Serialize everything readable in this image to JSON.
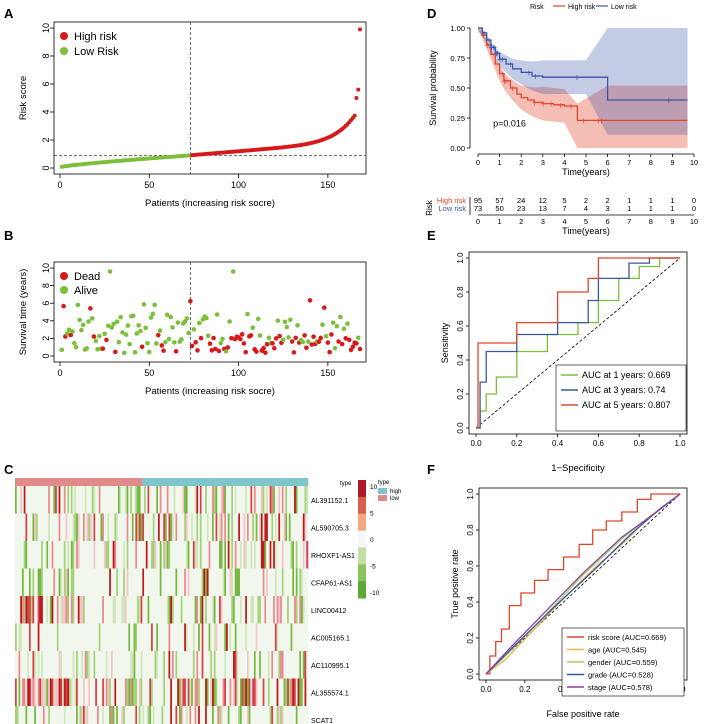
{
  "figure": {
    "panel_letters": [
      "A",
      "B",
      "C",
      "D",
      "E",
      "F"
    ]
  },
  "chart_data": [
    {
      "id": "A",
      "type": "scatter",
      "title": "",
      "xlabel": "Patients (increasing risk socre)",
      "ylabel": "Risk score",
      "xlim": [
        0,
        168
      ],
      "ylim": [
        0,
        10
      ],
      "xticks": [
        0,
        50,
        100,
        150
      ],
      "yticks": [
        0,
        2,
        4,
        6,
        8,
        10
      ],
      "n_low": 73,
      "n_high": 95,
      "cutoff_index": 73,
      "cutoff_value": 0.9,
      "legend": [
        {
          "label": "High risk",
          "color": "#d7191c"
        },
        {
          "label": "Low Risk",
          "color": "#7cbf3a"
        }
      ]
    },
    {
      "id": "B",
      "type": "scatter",
      "xlabel": "Patients (increasing risk socre)",
      "ylabel": "Survival time (years)",
      "xlim": [
        0,
        168
      ],
      "ylim": [
        0,
        10
      ],
      "xticks": [
        0,
        50,
        100,
        150
      ],
      "yticks": [
        0,
        2,
        4,
        6,
        8,
        10
      ],
      "cutoff_index": 73,
      "legend": [
        {
          "label": "Dead",
          "color": "#d7191c"
        },
        {
          "label": "Alive",
          "color": "#7cbf3a"
        }
      ]
    },
    {
      "id": "C",
      "type": "heatmap",
      "genes": [
        "AL391152.1",
        "AL590705.3",
        "RHOXF1-AS1",
        "CFAP61-AS1",
        "LINC00412",
        "AC005165.1",
        "AC110995.1",
        "AL355574.1",
        "SCAT1"
      ],
      "columns": 168,
      "low_count": 73,
      "colorbar_ticks": [
        10,
        5,
        0,
        -5,
        -10
      ],
      "legend_title": "type",
      "legend": [
        {
          "label": "high",
          "color": "#7ec6cc"
        },
        {
          "label": "low",
          "color": "#e08a8a"
        }
      ]
    },
    {
      "id": "D",
      "type": "line",
      "xlabel": "Time(years)",
      "ylabel": "Survival probability",
      "xlim": [
        0,
        10
      ],
      "ylim": [
        0,
        1
      ],
      "xticks": [
        0,
        1,
        2,
        3,
        4,
        5,
        6,
        7,
        8,
        9,
        10
      ],
      "yticks": [
        "0.00",
        "0.25",
        "0.50",
        "0.75",
        "1.00"
      ],
      "pvalue": "p=0.016",
      "legend_title": "Risk",
      "series": [
        {
          "name": "High risk",
          "color": "#e2452a",
          "x": [
            0,
            0.2,
            0.4,
            0.6,
            0.8,
            1.0,
            1.2,
            1.5,
            1.8,
            2.0,
            2.3,
            2.6,
            3.0,
            3.5,
            4.0,
            4.6,
            6.0,
            9.7
          ],
          "y": [
            1.0,
            0.94,
            0.86,
            0.78,
            0.7,
            0.62,
            0.56,
            0.5,
            0.45,
            0.42,
            0.4,
            0.38,
            0.37,
            0.36,
            0.35,
            0.23,
            0.23,
            0.23
          ]
        },
        {
          "name": "Low risk",
          "color": "#3d55a8",
          "x": [
            0,
            0.2,
            0.4,
            0.6,
            0.8,
            1.0,
            1.3,
            1.6,
            2.0,
            2.5,
            3.0,
            5.0,
            6.0,
            9.7
          ],
          "y": [
            1.0,
            0.96,
            0.9,
            0.84,
            0.79,
            0.74,
            0.7,
            0.66,
            0.63,
            0.6,
            0.59,
            0.59,
            0.4,
            0.4
          ]
        }
      ],
      "risk_table": {
        "title": "Risk",
        "rows": [
          {
            "name": "High risk",
            "color": "#e2452a",
            "counts": [
              "95",
              "57",
              "24",
              "12",
              "5",
              "2",
              "2",
              "1",
              "1",
              "1",
              "0"
            ]
          },
          {
            "name": "Low risk",
            "color": "#3d55a8",
            "counts": [
              "73",
              "50",
              "23",
              "13",
              "7",
              "4",
              "3",
              "1",
              "1",
              "1",
              "0"
            ]
          }
        ],
        "xlabel": "Time(years)",
        "xticks": [
          0,
          1,
          2,
          3,
          4,
          5,
          6,
          7,
          8,
          9,
          10
        ]
      }
    },
    {
      "id": "E",
      "type": "line",
      "xlabel": "1−Specificity",
      "ylabel": "Sensitivity",
      "xlim": [
        0,
        1
      ],
      "ylim": [
        0,
        1
      ],
      "xticks": [
        "0.0",
        "0.2",
        "0.4",
        "0.6",
        "0.8",
        "1.0"
      ],
      "yticks": [
        "0.0",
        "0.2",
        "0.4",
        "0.6",
        "0.8",
        "1.0"
      ],
      "series": [
        {
          "name": "AUC at 1 years: 0.669",
          "color": "#7cbf3a",
          "x": [
            0,
            0.02,
            0.02,
            0.05,
            0.05,
            0.1,
            0.1,
            0.2,
            0.2,
            0.35,
            0.35,
            0.5,
            0.5,
            0.6,
            0.6,
            0.7,
            0.7,
            0.8,
            0.8,
            0.9,
            0.9,
            1.0
          ],
          "y": [
            0,
            0,
            0.1,
            0.1,
            0.2,
            0.2,
            0.3,
            0.3,
            0.45,
            0.45,
            0.55,
            0.55,
            0.62,
            0.62,
            0.75,
            0.75,
            0.88,
            0.88,
            0.95,
            0.95,
            1.0,
            1.0
          ]
        },
        {
          "name": "AUC at 3 years: 0.74",
          "color": "#3d55a8",
          "x": [
            0,
            0.02,
            0.02,
            0.05,
            0.05,
            0.2,
            0.2,
            0.4,
            0.4,
            0.55,
            0.55,
            0.6,
            0.6,
            0.75,
            0.75,
            0.85,
            0.85,
            1.0
          ],
          "y": [
            0,
            0,
            0.27,
            0.27,
            0.45,
            0.45,
            0.55,
            0.55,
            0.62,
            0.62,
            0.75,
            0.75,
            0.88,
            0.88,
            0.97,
            0.97,
            1.0,
            1.0
          ]
        },
        {
          "name": "AUC at 5 years: 0.807",
          "color": "#e2452a",
          "x": [
            0,
            0.01,
            0.01,
            0.2,
            0.2,
            0.4,
            0.4,
            0.55,
            0.55,
            0.6,
            0.6,
            1.0
          ],
          "y": [
            0,
            0,
            0.5,
            0.5,
            0.62,
            0.62,
            0.8,
            0.8,
            0.88,
            0.88,
            1.0,
            1.0
          ]
        }
      ]
    },
    {
      "id": "F",
      "type": "line",
      "xlabel": "False positive rate",
      "ylabel": "True positive rate",
      "xlim": [
        0,
        1
      ],
      "ylim": [
        0,
        1
      ],
      "xticks": [
        "0.0",
        "0.2",
        "0.4",
        "0.6",
        "0.8",
        "1.0"
      ],
      "yticks": [
        "0.0",
        "0.2",
        "0.4",
        "0.6",
        "0.8",
        "1.0"
      ],
      "series": [
        {
          "name": "risk score (AUC=0.669)",
          "color": "#e2452a",
          "x": [
            0,
            0.02,
            0.02,
            0.05,
            0.05,
            0.08,
            0.08,
            0.12,
            0.12,
            0.18,
            0.18,
            0.25,
            0.25,
            0.32,
            0.32,
            0.4,
            0.4,
            0.48,
            0.48,
            0.55,
            0.55,
            0.62,
            0.62,
            0.7,
            0.7,
            0.78,
            0.78,
            0.85,
            0.85,
            1.0
          ],
          "y": [
            0,
            0,
            0.1,
            0.1,
            0.18,
            0.18,
            0.25,
            0.25,
            0.38,
            0.38,
            0.45,
            0.45,
            0.52,
            0.52,
            0.58,
            0.58,
            0.65,
            0.65,
            0.72,
            0.72,
            0.8,
            0.8,
            0.85,
            0.85,
            0.9,
            0.9,
            0.97,
            0.97,
            1.0,
            1.0
          ]
        },
        {
          "name": "age (AUC=0.545)",
          "color": "#e7b54a",
          "x": [
            0,
            0.1,
            0.25,
            0.4,
            0.55,
            0.7,
            0.85,
            1.0
          ],
          "y": [
            0,
            0.08,
            0.25,
            0.42,
            0.58,
            0.72,
            0.88,
            1.0
          ]
        },
        {
          "name": "gender (AUC=0.559)",
          "color": "#9fd36a",
          "x": [
            0,
            0.1,
            0.3,
            0.5,
            0.7,
            0.85,
            1.0
          ],
          "y": [
            0,
            0.1,
            0.32,
            0.55,
            0.75,
            0.88,
            1.0
          ]
        },
        {
          "name": "grade (AUC=0.528)",
          "color": "#3d55a8",
          "x": [
            0,
            0.15,
            0.35,
            0.55,
            0.75,
            0.9,
            1.0
          ],
          "y": [
            0,
            0.16,
            0.37,
            0.57,
            0.78,
            0.92,
            1.0
          ]
        },
        {
          "name": "stage (AUC=0.578)",
          "color": "#8e3fa0",
          "x": [
            0,
            0.12,
            0.3,
            0.5,
            0.7,
            0.88,
            1.0
          ],
          "y": [
            0,
            0.14,
            0.34,
            0.56,
            0.76,
            0.9,
            1.0
          ]
        }
      ]
    }
  ]
}
